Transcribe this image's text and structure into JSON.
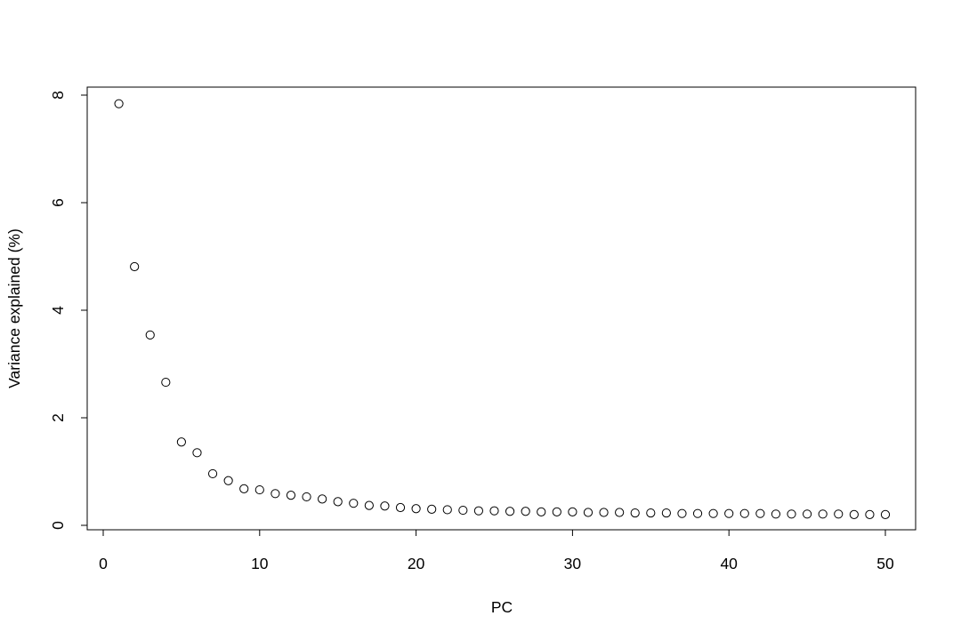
{
  "chart_data": {
    "type": "scatter",
    "title": "",
    "xlabel": "PC",
    "ylabel": "Variance explained (%)",
    "xlim": [
      0,
      52
    ],
    "ylim": [
      0,
      8.2
    ],
    "xticks": [
      0,
      10,
      20,
      30,
      40,
      50
    ],
    "yticks": [
      0,
      2,
      4,
      6,
      8
    ],
    "grid": false,
    "legend": "none",
    "marker": "open-circle",
    "colors": {
      "point": "#000000",
      "axis": "#000000",
      "background": "#ffffff"
    },
    "points": [
      {
        "x": 1,
        "y": 7.84
      },
      {
        "x": 2,
        "y": 4.81
      },
      {
        "x": 3,
        "y": 3.54
      },
      {
        "x": 4,
        "y": 2.66
      },
      {
        "x": 5,
        "y": 1.55
      },
      {
        "x": 6,
        "y": 1.35
      },
      {
        "x": 7,
        "y": 0.96
      },
      {
        "x": 8,
        "y": 0.83
      },
      {
        "x": 9,
        "y": 0.68
      },
      {
        "x": 10,
        "y": 0.66
      },
      {
        "x": 11,
        "y": 0.59
      },
      {
        "x": 12,
        "y": 0.56
      },
      {
        "x": 13,
        "y": 0.53
      },
      {
        "x": 14,
        "y": 0.49
      },
      {
        "x": 15,
        "y": 0.44
      },
      {
        "x": 16,
        "y": 0.41
      },
      {
        "x": 17,
        "y": 0.37
      },
      {
        "x": 18,
        "y": 0.36
      },
      {
        "x": 19,
        "y": 0.33
      },
      {
        "x": 20,
        "y": 0.31
      },
      {
        "x": 21,
        "y": 0.3
      },
      {
        "x": 22,
        "y": 0.29
      },
      {
        "x": 23,
        "y": 0.28
      },
      {
        "x": 24,
        "y": 0.27
      },
      {
        "x": 25,
        "y": 0.27
      },
      {
        "x": 26,
        "y": 0.26
      },
      {
        "x": 27,
        "y": 0.26
      },
      {
        "x": 28,
        "y": 0.25
      },
      {
        "x": 29,
        "y": 0.25
      },
      {
        "x": 30,
        "y": 0.25
      },
      {
        "x": 31,
        "y": 0.24
      },
      {
        "x": 32,
        "y": 0.24
      },
      {
        "x": 33,
        "y": 0.24
      },
      {
        "x": 34,
        "y": 0.23
      },
      {
        "x": 35,
        "y": 0.23
      },
      {
        "x": 36,
        "y": 0.23
      },
      {
        "x": 37,
        "y": 0.22
      },
      {
        "x": 38,
        "y": 0.22
      },
      {
        "x": 39,
        "y": 0.22
      },
      {
        "x": 40,
        "y": 0.22
      },
      {
        "x": 41,
        "y": 0.22
      },
      {
        "x": 42,
        "y": 0.22
      },
      {
        "x": 43,
        "y": 0.21
      },
      {
        "x": 44,
        "y": 0.21
      },
      {
        "x": 45,
        "y": 0.21
      },
      {
        "x": 46,
        "y": 0.21
      },
      {
        "x": 47,
        "y": 0.21
      },
      {
        "x": 48,
        "y": 0.2
      },
      {
        "x": 49,
        "y": 0.2
      },
      {
        "x": 50,
        "y": 0.2
      }
    ]
  }
}
